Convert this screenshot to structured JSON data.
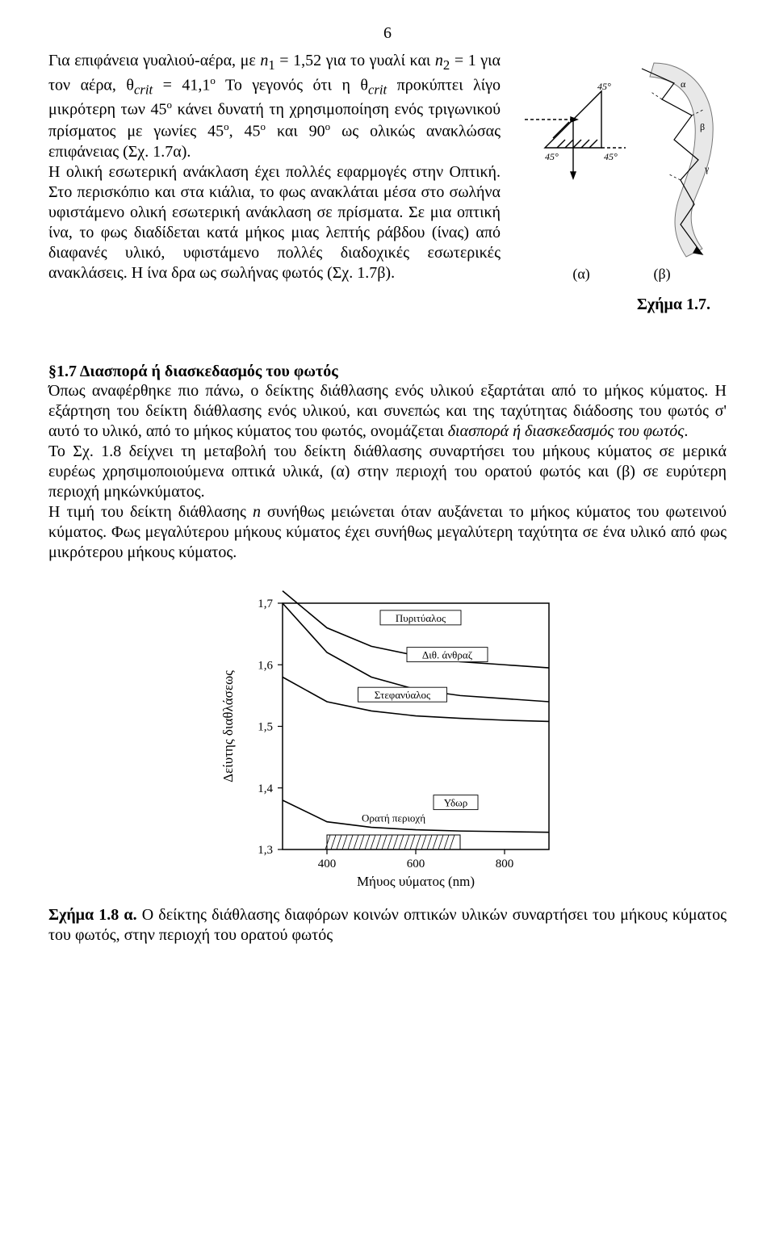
{
  "page_number": "6",
  "paragraph1_intro": "Για επιφάνεια γυαλιού-αέρα, με ",
  "n1": "n",
  "n1_sub": "1",
  "n1_eq": " = 1,52 για το γυαλί και ",
  "n2": "n",
  "n2_sub": "2",
  "n2_eq": " = 1 για τον αέρα, θ",
  "crit_sub": "crit",
  "eq_41": " = 41,1",
  "deg_o": "ο",
  "intro_tail": " Το γεγονός ότι η θ",
  "intro_tail2": " προκύπτει λίγο μικρότερη των 45",
  "intro_tail3": " κάνει δυνατή τη χρησιμοποίηση ενός τριγωνικού πρίσματος με γωνίες 45",
  "intro_tail4": ", 45",
  "intro_tail5": " και 90",
  "intro_tail6": " ως ολικώς ανακλώσας επιφάνειας (Σχ. 1.7α).",
  "paragraph2": "H ολική εσωτερική ανάκλαση έχει πολλές εφαρμογές στην Οπτική. Στο περισκόπιο και στα κιάλια, το φως ανακλάται μέσα στο σωλήνα υφιστάμενο ολική εσωτερική ανάκλαση σε πρίσματα. Σε μια οπτική ίνα, το φως διαδίδεται κατά μήκος μιας λεπτής ράβδου (ίνας) από διαφανές υλικό, υφιστάμενο πολλές διαδοχικές εσωτερικές ανακλάσεις. Η ίνα δρα ως σωλήνας φωτός (Σχ. 1.7β).",
  "label_alpha": "(α)",
  "label_beta": "(β)",
  "fig17_caption": "Σχήμα 1.7.",
  "section17_title": "§1.7 Διασπορά ή διασκεδασμός του φωτός",
  "section17_body_part1": "Όπως αναφέρθηκε πιο πάνω, ο δείκτης διάθλασης ενός υλικού εξαρτάται από το μήκος κύματος. Η εξάρτηση του δείκτη διάθλασης ενός υλικού, και συνεπώς και της ταχύτητας διάδοσης του φωτός σ' αυτό το υλικό, από το μήκος κύματος του φωτός, ονομάζεται ",
  "disp_italic": "διασπορά ή διασκεδασμός του φωτός",
  "section17_body_part1b": ".",
  "section17_body_part2": "Το Σχ. 1.8 δείχνει τη μεταβολή του δείκτη διάθλασης συναρτήσει του μήκους κύματος σε μερικά ευρέως χρησιμοποιούμενα οπτικά υλικά, (α) στην περιοχή του ορατού φωτός και (β) σε ευρύτερη περιοχή μηκώνκύματος.",
  "section17_body_part3a": "Η τιμή του δείκτη διάθλασης ",
  "section17_n": "n",
  "section17_body_part3b": " συνήθως μειώνεται όταν αυξάνεται το μήκος κύματος του φωτεινού κύματος. Φως μεγαλύτερου μήκους κύματος έχει συνήθως μεγαλύτερη ταχύτητα σε ένα υλικό από φως μικρότερου μήκους κύματος.",
  "fig18": {
    "y_ticks": [
      "1,7",
      "1,6",
      "1,5",
      "1,4",
      "1,3"
    ],
    "x_ticks": [
      "400",
      "600",
      "800"
    ],
    "y_label": "Δείυτης διαθλάσεως",
    "x_label": "Μήυος υύματος (nm)",
    "curve1_label": "Πυριτύαλος",
    "curve2_label": "Διθ. άνθραζ",
    "curve3_label": "Στεφανύαλος",
    "curve4_label": "Υδωρ",
    "visible_region": "Ορατή περιοχή",
    "axis_color": "#000000",
    "curve_color": "#000000",
    "bg": "#ffffff",
    "curves": {
      "c1": [
        [
          300,
          1.72
        ],
        [
          400,
          1.66
        ],
        [
          500,
          1.63
        ],
        [
          600,
          1.615
        ],
        [
          700,
          1.605
        ],
        [
          800,
          1.6
        ],
        [
          900,
          1.595
        ]
      ],
      "c2": [
        [
          300,
          1.7
        ],
        [
          400,
          1.62
        ],
        [
          500,
          1.58
        ],
        [
          600,
          1.56
        ],
        [
          700,
          1.55
        ],
        [
          800,
          1.545
        ],
        [
          900,
          1.54
        ]
      ],
      "c3": [
        [
          300,
          1.58
        ],
        [
          400,
          1.54
        ],
        [
          500,
          1.525
        ],
        [
          600,
          1.517
        ],
        [
          700,
          1.513
        ],
        [
          800,
          1.51
        ],
        [
          900,
          1.508
        ]
      ],
      "c4": [
        [
          300,
          1.38
        ],
        [
          400,
          1.345
        ],
        [
          500,
          1.336
        ],
        [
          600,
          1.332
        ],
        [
          700,
          1.33
        ],
        [
          800,
          1.329
        ],
        [
          900,
          1.328
        ]
      ]
    },
    "visible_band": [
      400,
      700
    ]
  },
  "fig18a_caption_bold": "Σχήμα 1.8 α.",
  "fig18a_caption_rest": " Ο δείκτης διάθλασης διαφόρων  κοινών   οπτικών υλικών συναρτήσει του μήκους κύματος του φωτός, στην περιοχή του ορατού φωτός",
  "fig17_labels": {
    "a45_1": "45°",
    "a45_2": "45°",
    "a45_3": "45°",
    "alpha": "α",
    "beta": "β",
    "gamma": "γ"
  }
}
